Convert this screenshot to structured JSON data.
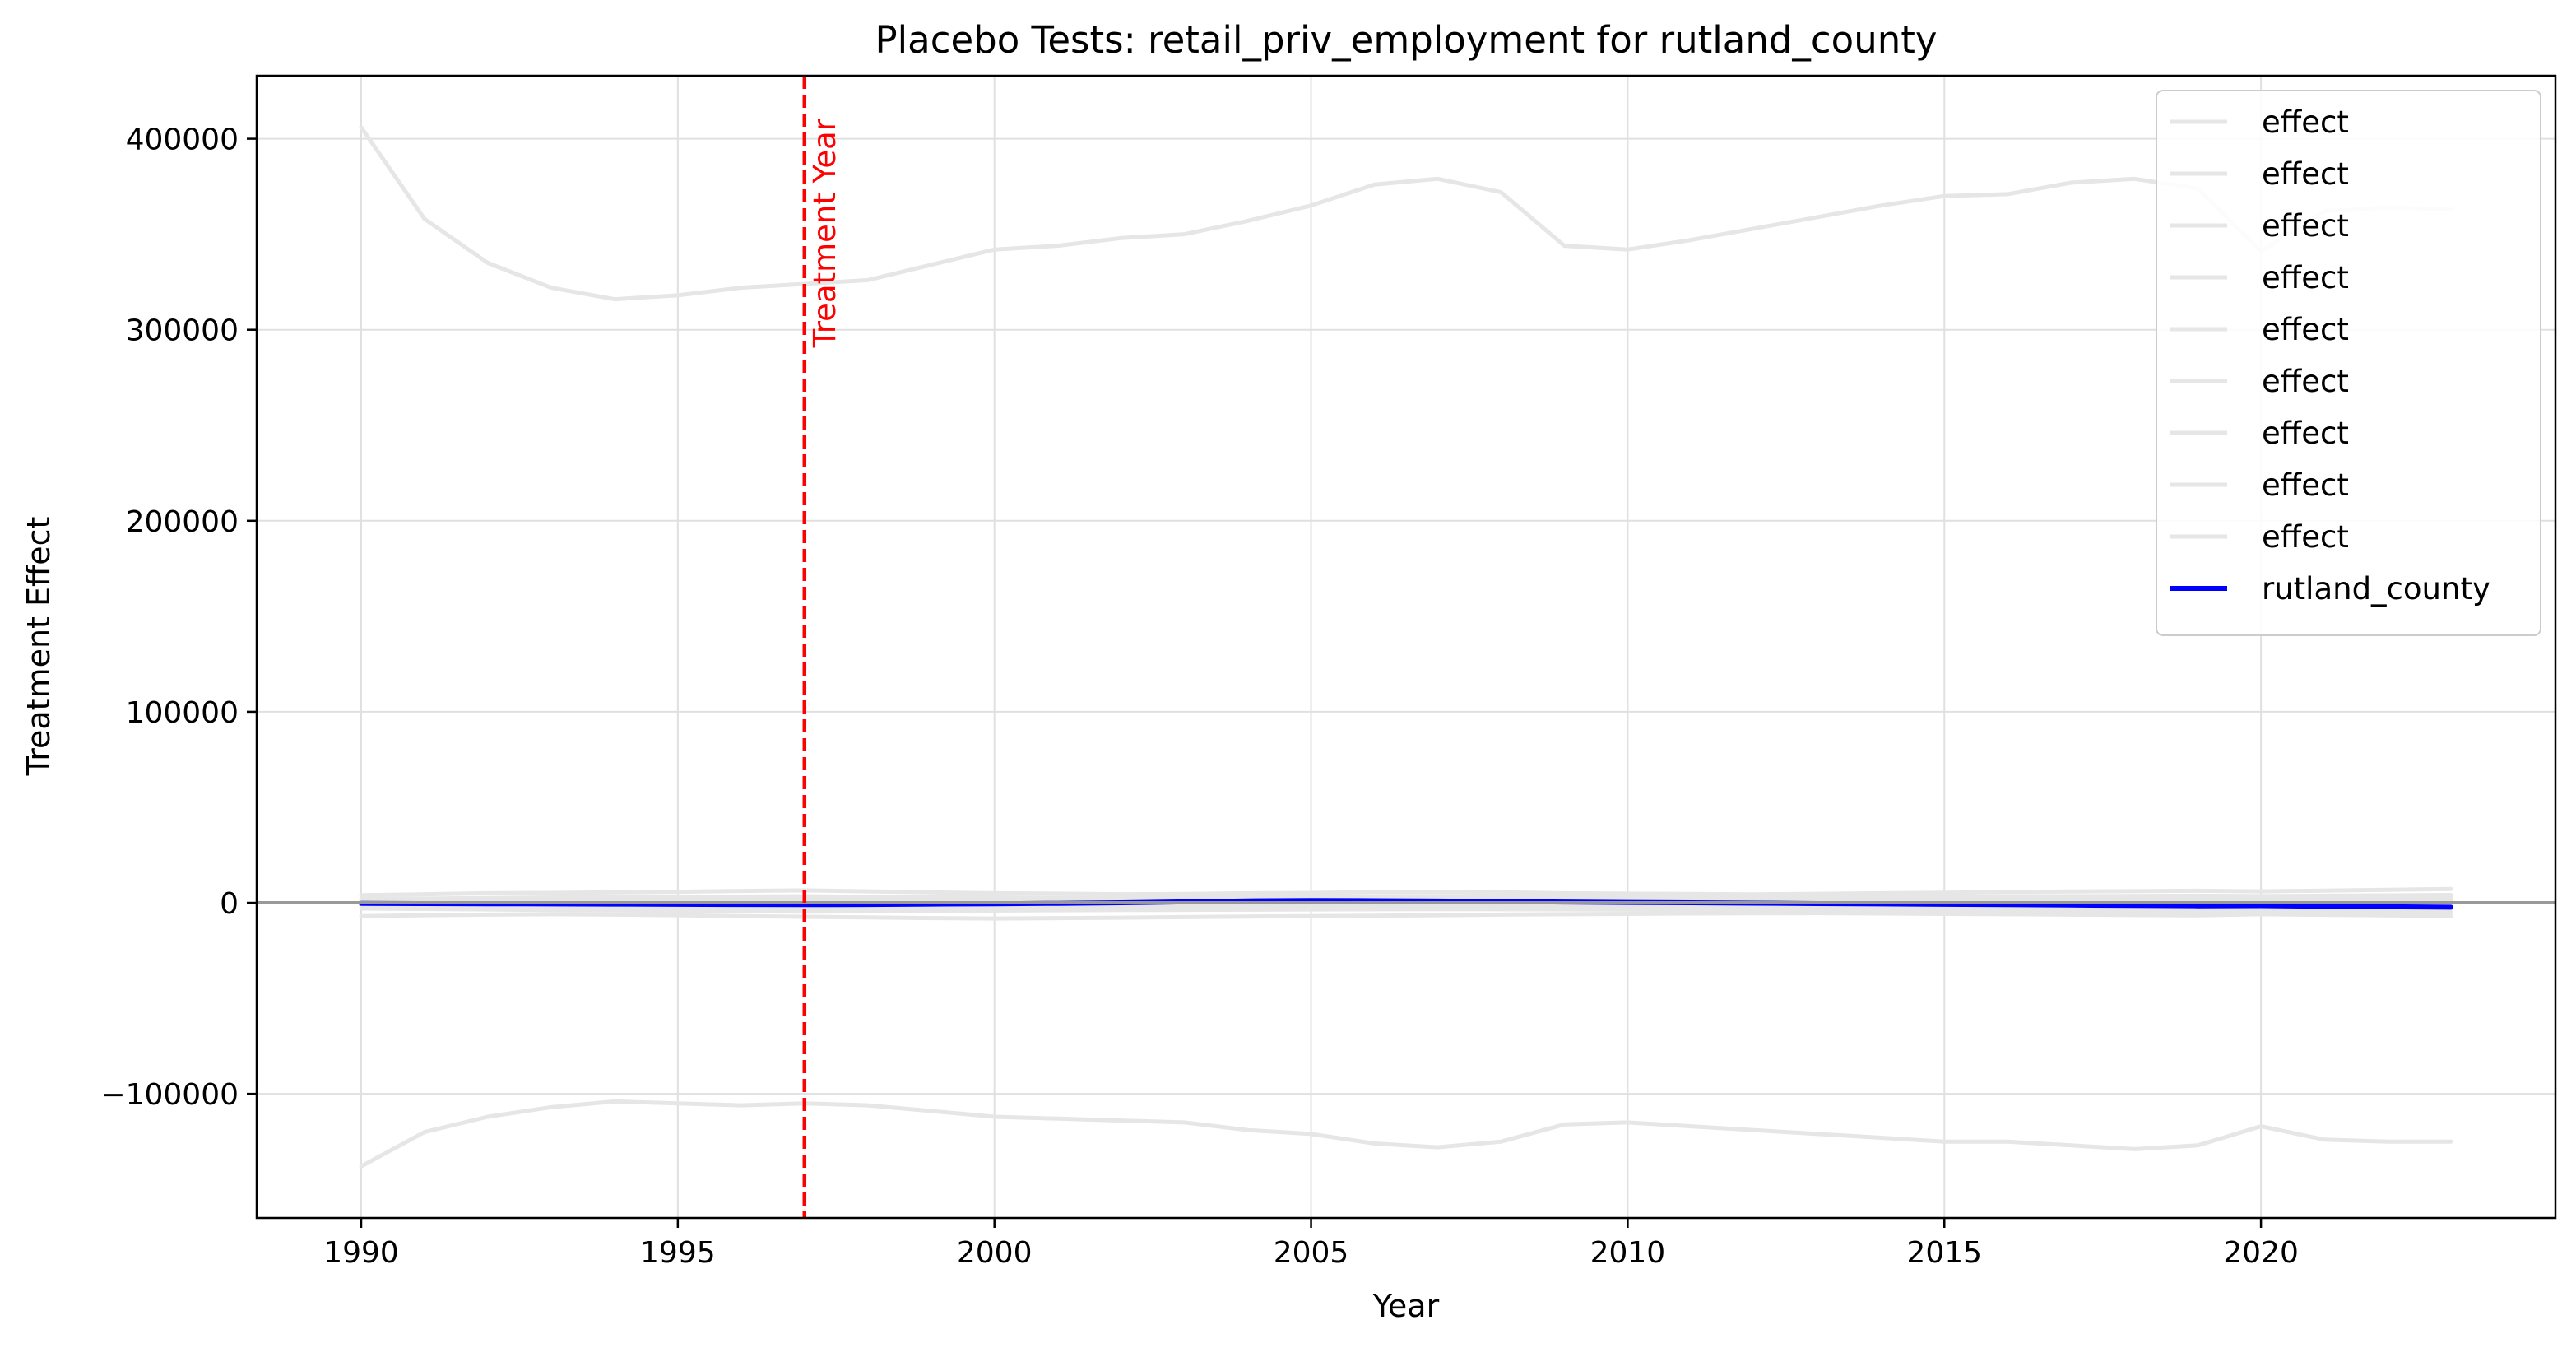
{
  "chart_data": {
    "type": "line",
    "title": "Placebo Tests: retail_priv_employment for rutland_county",
    "xlabel": "Year",
    "ylabel": "Treatment Effect",
    "xlim": [
      1988.35,
      2024.65
    ],
    "ylim": [
      -165000,
      433000
    ],
    "xticks": [
      1990,
      1995,
      2000,
      2005,
      2010,
      2015,
      2020
    ],
    "xtick_labels": [
      "1990",
      "1995",
      "2000",
      "2005",
      "2010",
      "2015",
      "2020"
    ],
    "yticks": [
      -100000,
      0,
      100000,
      200000,
      300000,
      400000
    ],
    "ytick_labels": [
      "−100000",
      "0",
      "100000",
      "200000",
      "300000",
      "400000"
    ],
    "grid": true,
    "legend_position": "top-right",
    "x": [
      1990,
      1991,
      1992,
      1993,
      1994,
      1995,
      1996,
      1997,
      1998,
      1999,
      2000,
      2001,
      2002,
      2003,
      2004,
      2005,
      2006,
      2007,
      2008,
      2009,
      2010,
      2011,
      2012,
      2013,
      2014,
      2015,
      2016,
      2017,
      2018,
      2019,
      2020,
      2021,
      2022,
      2023
    ],
    "series": [
      {
        "name": "effect",
        "color": "#e6e6e6",
        "values": [
          406000,
          358000,
          335000,
          322000,
          316000,
          318000,
          322000,
          324000,
          326000,
          334000,
          342000,
          344000,
          348000,
          350000,
          357000,
          365000,
          376000,
          379000,
          372000,
          344000,
          342000,
          347000,
          353000,
          359000,
          365000,
          370000,
          371000,
          377000,
          379000,
          374000,
          341000,
          362000,
          364000,
          363000
        ]
      },
      {
        "name": "effect",
        "color": "#e6e6e6",
        "values": [
          -138000,
          -120000,
          -112000,
          -107000,
          -104000,
          -105000,
          -106000,
          -105000,
          -106000,
          -109000,
          -112000,
          -113000,
          -114000,
          -115000,
          -119000,
          -121000,
          -126000,
          -128000,
          -125000,
          -116000,
          -115000,
          -117000,
          -119000,
          -121000,
          -123000,
          -125000,
          -125000,
          -127000,
          -129000,
          -127000,
          -117000,
          -124000,
          -125000,
          -125000
        ]
      },
      {
        "name": "effect",
        "color": "#e6e6e6",
        "values": [
          4000,
          4500,
          5000,
          5200,
          5500,
          5800,
          6200,
          6500,
          6000,
          5500,
          5000,
          4800,
          4500,
          4600,
          5000,
          5200,
          5600,
          5800,
          5500,
          5000,
          4800,
          4600,
          4400,
          4700,
          5000,
          5300,
          5600,
          5900,
          6100,
          6300,
          6000,
          6400,
          6800,
          7200
        ]
      },
      {
        "name": "effect",
        "color": "#e6e6e6",
        "values": [
          -7000,
          -6500,
          -6200,
          -6000,
          -6200,
          -6500,
          -7000,
          -7300,
          -7600,
          -8000,
          -8200,
          -8000,
          -7800,
          -7500,
          -7200,
          -7000,
          -6800,
          -6500,
          -6200,
          -6000,
          -5800,
          -5600,
          -5500,
          -5400,
          -5600,
          -5800,
          -6000,
          -6200,
          -6400,
          -6600,
          -6000,
          -6300,
          -6600,
          -6900
        ]
      },
      {
        "name": "effect",
        "color": "#e6e6e6",
        "values": [
          2000,
          2200,
          2500,
          2800,
          3000,
          3100,
          3300,
          3400,
          3200,
          3000,
          2800,
          2600,
          2500,
          2700,
          2900,
          3100,
          3300,
          3500,
          3400,
          3200,
          3000,
          2900,
          2800,
          2900,
          3000,
          3200,
          3300,
          3500,
          3600,
          3700,
          3500,
          3700,
          3900,
          4100
        ]
      },
      {
        "name": "effect",
        "color": "#e6e6e6",
        "values": [
          -3000,
          -3200,
          -3500,
          -3800,
          -4000,
          -4200,
          -4400,
          -4600,
          -4500,
          -4300,
          -4100,
          -3900,
          -3800,
          -3700,
          -3600,
          -3500,
          -3400,
          -3300,
          -3400,
          -3500,
          -3600,
          -3700,
          -3800,
          -3900,
          -4000,
          -4100,
          -4200,
          -4300,
          -4400,
          -4500,
          -4300,
          -4600,
          -4800,
          -5000
        ]
      },
      {
        "name": "effect",
        "color": "#e6e6e6",
        "values": [
          1000,
          1100,
          1300,
          1500,
          1600,
          1700,
          1800,
          1900,
          1700,
          1500,
          1400,
          1300,
          1200,
          1400,
          1600,
          1800,
          2000,
          2200,
          2100,
          1900,
          1700,
          1600,
          1500,
          1600,
          1700,
          1900,
          2000,
          2200,
          2300,
          2400,
          2200,
          2400,
          2600,
          2800
        ]
      },
      {
        "name": "effect",
        "color": "#e6e6e6",
        "values": [
          -1500,
          -1600,
          -1800,
          -2000,
          -2200,
          -2400,
          -2600,
          -2800,
          -2700,
          -2500,
          -2300,
          -2100,
          -2000,
          -1900,
          -1800,
          -1700,
          -1600,
          -1500,
          -1600,
          -1700,
          -1800,
          -1900,
          -2000,
          -2100,
          -2200,
          -2300,
          -2400,
          -2500,
          -2600,
          -2700,
          -2500,
          -2700,
          -2900,
          -3100
        ]
      },
      {
        "name": "effect",
        "color": "#e6e6e6",
        "values": [
          500,
          600,
          700,
          800,
          900,
          1000,
          1100,
          1200,
          1100,
          1000,
          900,
          800,
          700,
          800,
          900,
          1000,
          1100,
          1200,
          1100,
          1000,
          900,
          800,
          700,
          800,
          900,
          1000,
          1100,
          1200,
          1300,
          1400,
          1300,
          1400,
          1500,
          1600
        ]
      },
      {
        "name": "rutland_county",
        "color": "#0000ff",
        "values": [
          -300,
          -400,
          -500,
          -600,
          -700,
          -800,
          -900,
          -1000,
          -900,
          -700,
          -500,
          -300,
          0,
          500,
          1000,
          1200,
          1100,
          900,
          700,
          400,
          200,
          0,
          -200,
          -400,
          -600,
          -800,
          -1000,
          -1200,
          -1400,
          -1600,
          -1500,
          -1900,
          -2100,
          -2300
        ]
      }
    ],
    "annotations": [
      {
        "text": "Treatment Year",
        "x": 1997,
        "color": "#ff0000",
        "style": "dashed vertical line"
      }
    ],
    "reference_lines": [
      {
        "y": 0,
        "color": "#999999"
      }
    ]
  }
}
